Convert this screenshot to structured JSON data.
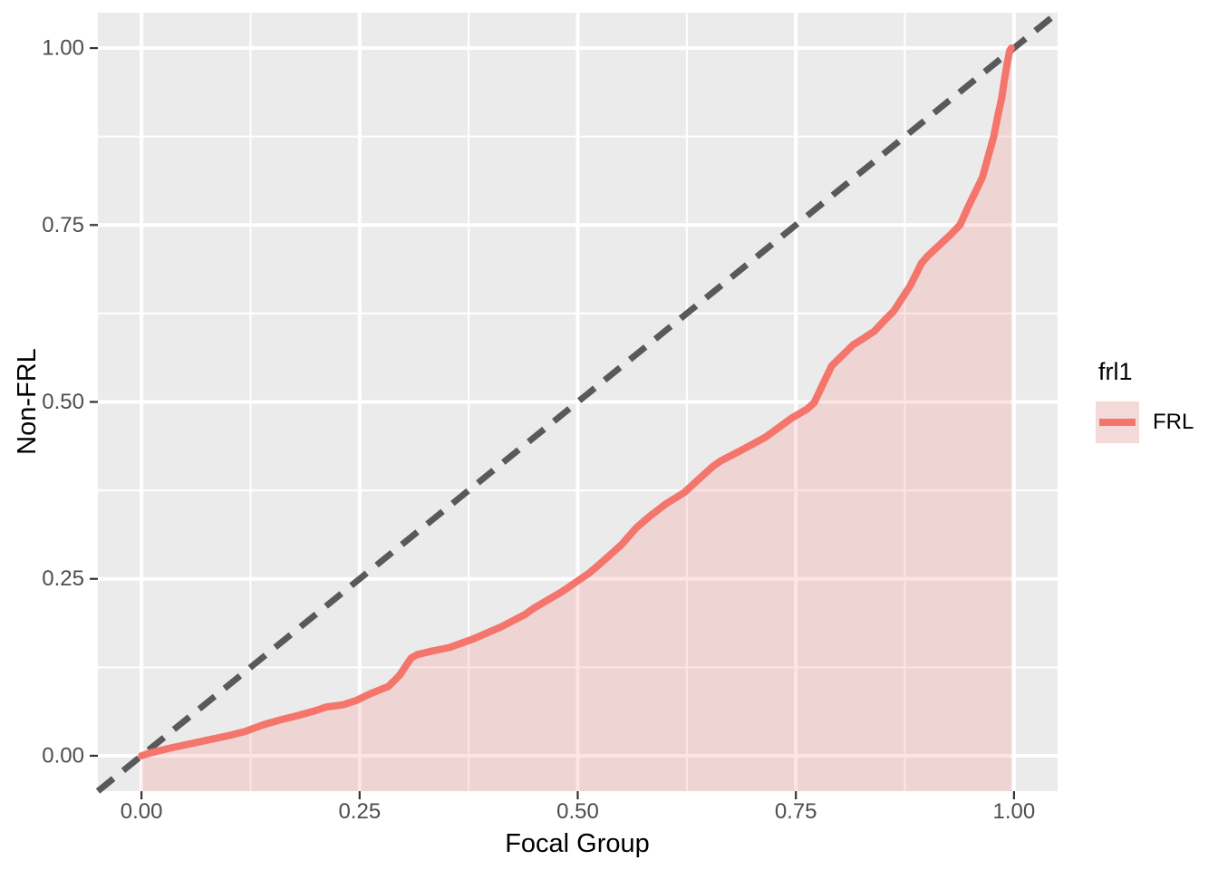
{
  "chart_data": {
    "type": "line",
    "title": "",
    "xlabel": "Focal Group",
    "ylabel": "Non-FRL",
    "xlim": [
      -0.05,
      1.05
    ],
    "ylim": [
      -0.05,
      1.05
    ],
    "x_ticks": [
      0,
      0.25,
      0.5,
      0.75,
      1.0
    ],
    "x_tick_labels": [
      "0.00",
      "0.25",
      "0.50",
      "0.75",
      "1.00"
    ],
    "y_ticks": [
      0,
      0.25,
      0.5,
      0.75,
      1.0
    ],
    "y_tick_labels": [
      "0.00",
      "0.25",
      "0.50",
      "0.75",
      "1.00"
    ],
    "grid": "white major and minor gridlines on grey panel",
    "panel_background": "#EBEBEB",
    "gridline_color": "#FFFFFF",
    "tick_mark_color": "#333333",
    "tick_text_color": "#4D4D4D",
    "legend_position": "right",
    "series": [
      {
        "name": "FRL",
        "color": "#F4756C",
        "fill_color": "#F8766D",
        "fill_alpha": 0.2,
        "fill_to": "panel-bottom",
        "points": [
          [
            0.0,
            0.0
          ],
          [
            0.01,
            0.004
          ],
          [
            0.03,
            0.01
          ],
          [
            0.052,
            0.016
          ],
          [
            0.075,
            0.022
          ],
          [
            0.098,
            0.028
          ],
          [
            0.118,
            0.034
          ],
          [
            0.14,
            0.044
          ],
          [
            0.16,
            0.051
          ],
          [
            0.18,
            0.057
          ],
          [
            0.2,
            0.064
          ],
          [
            0.212,
            0.069
          ],
          [
            0.231,
            0.072
          ],
          [
            0.246,
            0.078
          ],
          [
            0.263,
            0.088
          ],
          [
            0.283,
            0.098
          ],
          [
            0.296,
            0.114
          ],
          [
            0.309,
            0.138
          ],
          [
            0.316,
            0.143
          ],
          [
            0.333,
            0.148
          ],
          [
            0.353,
            0.153
          ],
          [
            0.38,
            0.165
          ],
          [
            0.412,
            0.182
          ],
          [
            0.44,
            0.2
          ],
          [
            0.449,
            0.208
          ],
          [
            0.482,
            0.232
          ],
          [
            0.513,
            0.258
          ],
          [
            0.53,
            0.276
          ],
          [
            0.55,
            0.298
          ],
          [
            0.567,
            0.322
          ],
          [
            0.581,
            0.337
          ],
          [
            0.601,
            0.356
          ],
          [
            0.622,
            0.372
          ],
          [
            0.631,
            0.382
          ],
          [
            0.655,
            0.409
          ],
          [
            0.663,
            0.416
          ],
          [
            0.688,
            0.432
          ],
          [
            0.715,
            0.45
          ],
          [
            0.745,
            0.477
          ],
          [
            0.763,
            0.49
          ],
          [
            0.771,
            0.499
          ],
          [
            0.781,
            0.525
          ],
          [
            0.791,
            0.551
          ],
          [
            0.816,
            0.581
          ],
          [
            0.824,
            0.587
          ],
          [
            0.84,
            0.6
          ],
          [
            0.853,
            0.617
          ],
          [
            0.862,
            0.628
          ],
          [
            0.881,
            0.664
          ],
          [
            0.894,
            0.696
          ],
          [
            0.901,
            0.706
          ],
          [
            0.915,
            0.722
          ],
          [
            0.927,
            0.736
          ],
          [
            0.938,
            0.75
          ],
          [
            0.948,
            0.777
          ],
          [
            0.957,
            0.8
          ],
          [
            0.964,
            0.818
          ],
          [
            0.971,
            0.849
          ],
          [
            0.977,
            0.876
          ],
          [
            0.982,
            0.907
          ],
          [
            0.986,
            0.93
          ],
          [
            0.989,
            0.955
          ],
          [
            0.992,
            0.977
          ],
          [
            0.995,
            0.996
          ],
          [
            0.997,
            1.0
          ]
        ]
      }
    ],
    "reference_line": {
      "name": "identity",
      "style": "dashed",
      "from": [
        -0.05,
        -0.05
      ],
      "to": [
        1.05,
        1.05
      ],
      "color": "#595959"
    },
    "legend": {
      "title": "frl1",
      "items": [
        {
          "label": "FRL",
          "key_background": "#F3DAD8",
          "key_line_color": "#F4756C"
        }
      ]
    }
  }
}
